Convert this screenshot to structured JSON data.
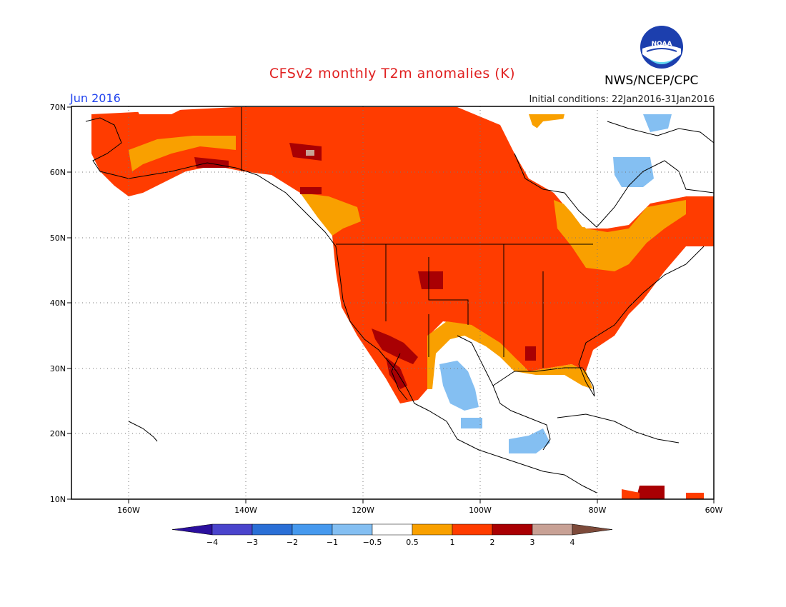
{
  "header": {
    "title": "CFSv2 monthly T2m anomalies (K)",
    "valid_month": "Jun 2016",
    "initial_conditions": "Initial conditions: 22Jan2016-31Jan2016",
    "agency": "NWS/NCEP/CPC",
    "logo_text": "NOAA"
  },
  "map": {
    "region": "North America",
    "projection": "lat-lon",
    "lat_range": [
      10,
      70
    ],
    "lon_range": [
      -172,
      -60
    ],
    "lat_labels": [
      "70N",
      "60N",
      "50N",
      "40N",
      "30N",
      "20N",
      "10N"
    ],
    "lon_labels": [
      "160W",
      "140W",
      "120W",
      "100W",
      "80W",
      "60W"
    ],
    "gridlines": "dotted"
  },
  "colorbar": {
    "tick_labels": [
      "-4",
      "-3",
      "-2",
      "-1",
      "-0.5",
      "0.5",
      "1",
      "2",
      "3",
      "4"
    ],
    "colors": [
      "#2b0f9e",
      "#4a44cc",
      "#2a6fd6",
      "#4699ee",
      "#84bff2",
      "#ffffff",
      "#f9a000",
      "#ff3c00",
      "#a90003",
      "#c8a195",
      "#7d4a3a"
    ]
  },
  "anomaly_summary": [
    {
      "region": "Alaska and western Canada",
      "category": "1 to 2"
    },
    {
      "region": "Contiguous United States",
      "category": "1 to 2"
    },
    {
      "region": "Southwest US / northwest Mexico",
      "category": "2 to 3"
    },
    {
      "region": "Hudson Bay / Quebec",
      "category": "-0.5 to 0.5"
    },
    {
      "region": "Northern Mexico interior",
      "category": "-1 to -0.5"
    },
    {
      "region": "Central America",
      "category": "-1 to -0.5"
    }
  ]
}
